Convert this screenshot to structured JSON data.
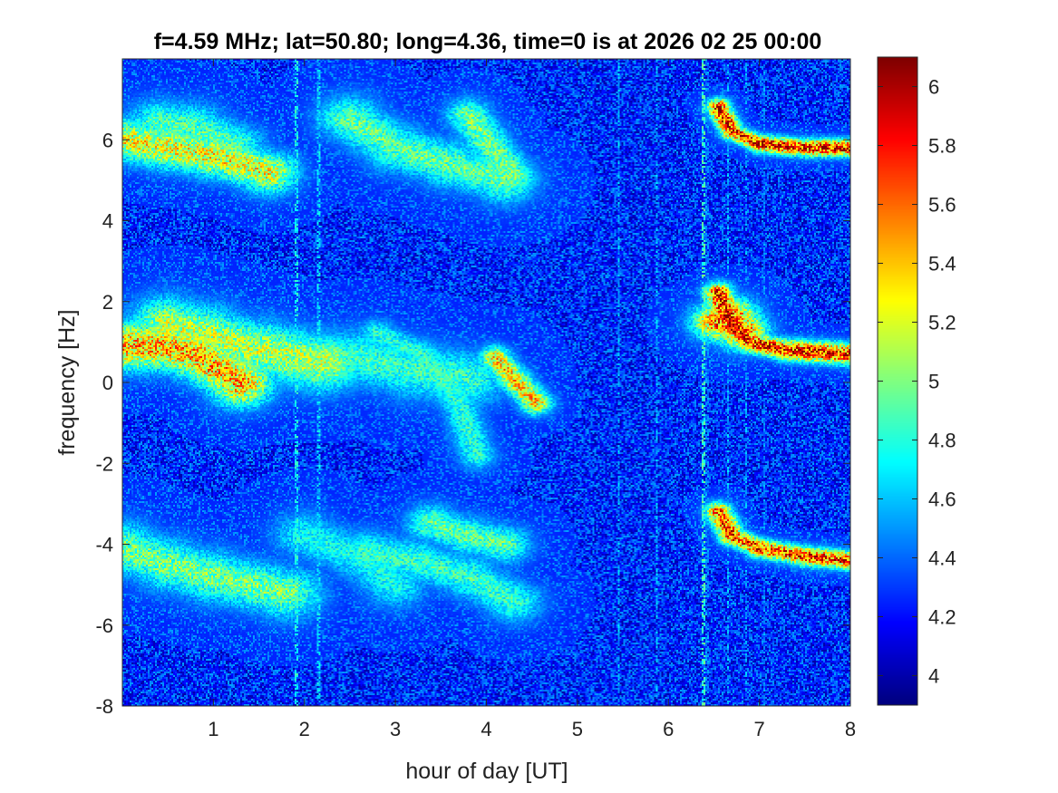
{
  "chart_data": {
    "type": "heatmap",
    "title": "f=4.59 MHz;  lat=50.80; long=4.36, time=0 is at 2026 02 25 00:00",
    "xlabel": "hour of day [UT]",
    "ylabel": "frequency [Hz]",
    "xlim": [
      0,
      8
    ],
    "ylim": [
      -8,
      8
    ],
    "xticks": [
      "1",
      "2",
      "3",
      "4",
      "5",
      "6",
      "7",
      "8"
    ],
    "yticks": [
      "-8",
      "-6",
      "-4",
      "-2",
      "0",
      "2",
      "4",
      "6"
    ],
    "colorbar": {
      "colormap": "jet",
      "clim": [
        3.9,
        6.1
      ],
      "ticks": [
        "4",
        "4.2",
        "4.4",
        "4.6",
        "4.8",
        "5",
        "5.2",
        "5.4",
        "5.6",
        "5.8",
        "6"
      ]
    },
    "background_level": 4.25,
    "traces": [
      {
        "points": [
          [
            0,
            6.0
          ],
          [
            0.5,
            5.8
          ],
          [
            1.0,
            5.6
          ],
          [
            1.6,
            5.2
          ]
        ],
        "intensity": 5.35,
        "width": 0.45
      },
      {
        "points": [
          [
            0.4,
            6.4
          ],
          [
            0.8,
            6.3
          ],
          [
            1.2,
            5.9
          ]
        ],
        "intensity": 4.95,
        "width": 0.5
      },
      {
        "points": [
          [
            2.5,
            6.5
          ],
          [
            3.0,
            5.8
          ],
          [
            3.6,
            5.4
          ],
          [
            4.2,
            5.0
          ]
        ],
        "intensity": 5.0,
        "width": 0.5
      },
      {
        "points": [
          [
            3.8,
            6.6
          ],
          [
            4.0,
            6.0
          ],
          [
            4.3,
            5.1
          ]
        ],
        "intensity": 5.05,
        "width": 0.35
      },
      {
        "points": [
          [
            0,
            0.9
          ],
          [
            0.4,
            0.9
          ],
          [
            0.8,
            0.7
          ],
          [
            1.3,
            0.0
          ]
        ],
        "intensity": 5.55,
        "width": 0.5
      },
      {
        "points": [
          [
            0.5,
            1.4
          ],
          [
            0.9,
            1.2
          ],
          [
            1.5,
            0.8
          ],
          [
            2.2,
            0.5
          ]
        ],
        "intensity": 5.2,
        "width": 0.6
      },
      {
        "points": [
          [
            2.0,
            0.5
          ],
          [
            2.6,
            0.6
          ],
          [
            3.2,
            0.3
          ],
          [
            3.8,
            0.1
          ]
        ],
        "intensity": 4.9,
        "width": 0.6
      },
      {
        "points": [
          [
            2.8,
            1.2
          ],
          [
            3.3,
            0.7
          ],
          [
            3.7,
            -0.5
          ],
          [
            3.9,
            -1.8
          ]
        ],
        "intensity": 4.85,
        "width": 0.3
      },
      {
        "points": [
          [
            4.1,
            0.6
          ],
          [
            4.3,
            0.1
          ],
          [
            4.55,
            -0.5
          ]
        ],
        "intensity": 5.45,
        "width": 0.25
      },
      {
        "points": [
          [
            0,
            -4.1
          ],
          [
            0.5,
            -4.5
          ],
          [
            1.0,
            -4.8
          ],
          [
            1.8,
            -5.2
          ]
        ],
        "intensity": 5.05,
        "width": 0.55
      },
      {
        "points": [
          [
            2.0,
            -3.8
          ],
          [
            2.6,
            -4.3
          ],
          [
            3.0,
            -5.0
          ]
        ],
        "intensity": 4.8,
        "width": 0.5
      },
      {
        "points": [
          [
            2.7,
            -4.2
          ],
          [
            3.2,
            -4.4
          ],
          [
            3.8,
            -4.8
          ],
          [
            4.3,
            -5.4
          ]
        ],
        "intensity": 4.9,
        "width": 0.45
      },
      {
        "points": [
          [
            3.4,
            -3.5
          ],
          [
            3.8,
            -3.8
          ],
          [
            4.2,
            -4.0
          ]
        ],
        "intensity": 5.0,
        "width": 0.4
      },
      {
        "points": [
          [
            6.55,
            6.8
          ],
          [
            6.7,
            6.2
          ],
          [
            7.0,
            5.9
          ],
          [
            7.5,
            5.8
          ],
          [
            8.0,
            5.8
          ]
        ],
        "intensity": 5.95,
        "width": 0.18
      },
      {
        "points": [
          [
            6.55,
            2.2
          ],
          [
            6.7,
            1.4
          ],
          [
            6.9,
            1.0
          ],
          [
            7.3,
            0.8
          ],
          [
            8.0,
            0.7
          ]
        ],
        "intensity": 5.95,
        "width": 0.22
      },
      {
        "points": [
          [
            6.55,
            1.5
          ],
          [
            6.7,
            1.6
          ],
          [
            6.8,
            1.3
          ]
        ],
        "intensity": 5.7,
        "width": 0.4
      },
      {
        "points": [
          [
            6.55,
            -3.2
          ],
          [
            6.7,
            -3.8
          ],
          [
            7.0,
            -4.1
          ],
          [
            7.5,
            -4.3
          ],
          [
            8.0,
            -4.4
          ]
        ],
        "intensity": 5.85,
        "width": 0.2
      }
    ],
    "vertical_lines": [
      {
        "x": 1.92,
        "intensity": 4.9
      },
      {
        "x": 2.15,
        "intensity": 4.8
      },
      {
        "x": 5.46,
        "intensity": 4.7
      },
      {
        "x": 5.88,
        "intensity": 4.7
      },
      {
        "x": 6.38,
        "intensity": 5.0
      },
      {
        "x": 6.42,
        "intensity": 4.6
      },
      {
        "x": 6.65,
        "intensity": 4.7
      },
      {
        "x": 6.85,
        "intensity": 4.65
      },
      {
        "x": 7.05,
        "intensity": 4.6
      }
    ]
  }
}
